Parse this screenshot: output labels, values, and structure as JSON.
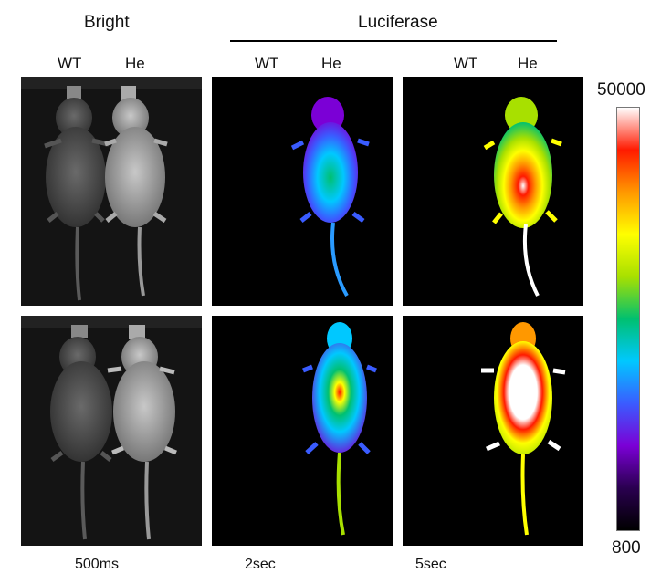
{
  "headers": {
    "bright": "Bright",
    "luciferase": "Luciferase"
  },
  "columns": {
    "bright": {
      "left": "WT",
      "right": "He"
    },
    "lum2": {
      "left": "WT",
      "right": "He"
    },
    "lum5": {
      "left": "WT",
      "right": "He"
    }
  },
  "colorbar": {
    "max": "50000",
    "min": "800",
    "colors": [
      "#000000",
      "#2a0050",
      "#7b00d6",
      "#3a5cff",
      "#00c8ff",
      "#00c070",
      "#a8e000",
      "#ffff00",
      "#ff9800",
      "#ff1a00",
      "#ffffff"
    ]
  },
  "exposures": {
    "bright": "500ms",
    "lum2": "2sec",
    "lum5": "5sec"
  }
}
